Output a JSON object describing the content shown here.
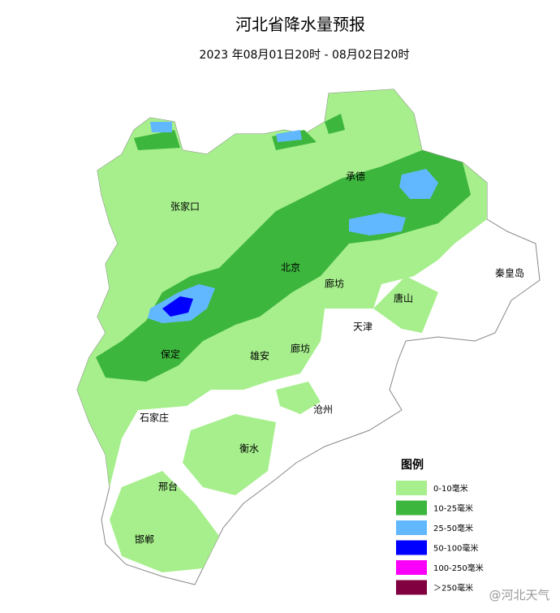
{
  "header": {
    "title": "河北省降水量预报",
    "subtitle": "2023 年08月01日20时 - 08月02日20时"
  },
  "map": {
    "cities": [
      {
        "name": "张家口"
      },
      {
        "name": "承德"
      },
      {
        "name": "北京"
      },
      {
        "name": "秦皇岛"
      },
      {
        "name": "唐山"
      },
      {
        "name": "廊坊"
      },
      {
        "name": "天津"
      },
      {
        "name": "保定"
      },
      {
        "name": "雄安"
      },
      {
        "name": "廊坊"
      },
      {
        "name": "沧州"
      },
      {
        "name": "石家庄"
      },
      {
        "name": "衡水"
      },
      {
        "name": "邢台"
      },
      {
        "name": "邯郸"
      }
    ]
  },
  "legend": {
    "title": "图例",
    "items": [
      {
        "label": "0-10毫米",
        "color": "#a6ef8c"
      },
      {
        "label": "10-25毫米",
        "color": "#3db63d"
      },
      {
        "label": "25-50毫米",
        "color": "#62b8ff"
      },
      {
        "label": "50-100毫米",
        "color": "#0000fe"
      },
      {
        "label": "100-250毫米",
        "color": "#fa00fa"
      },
      {
        "label": "＞250毫米",
        "color": "#800040"
      }
    ]
  },
  "watermark": "@河北天气"
}
